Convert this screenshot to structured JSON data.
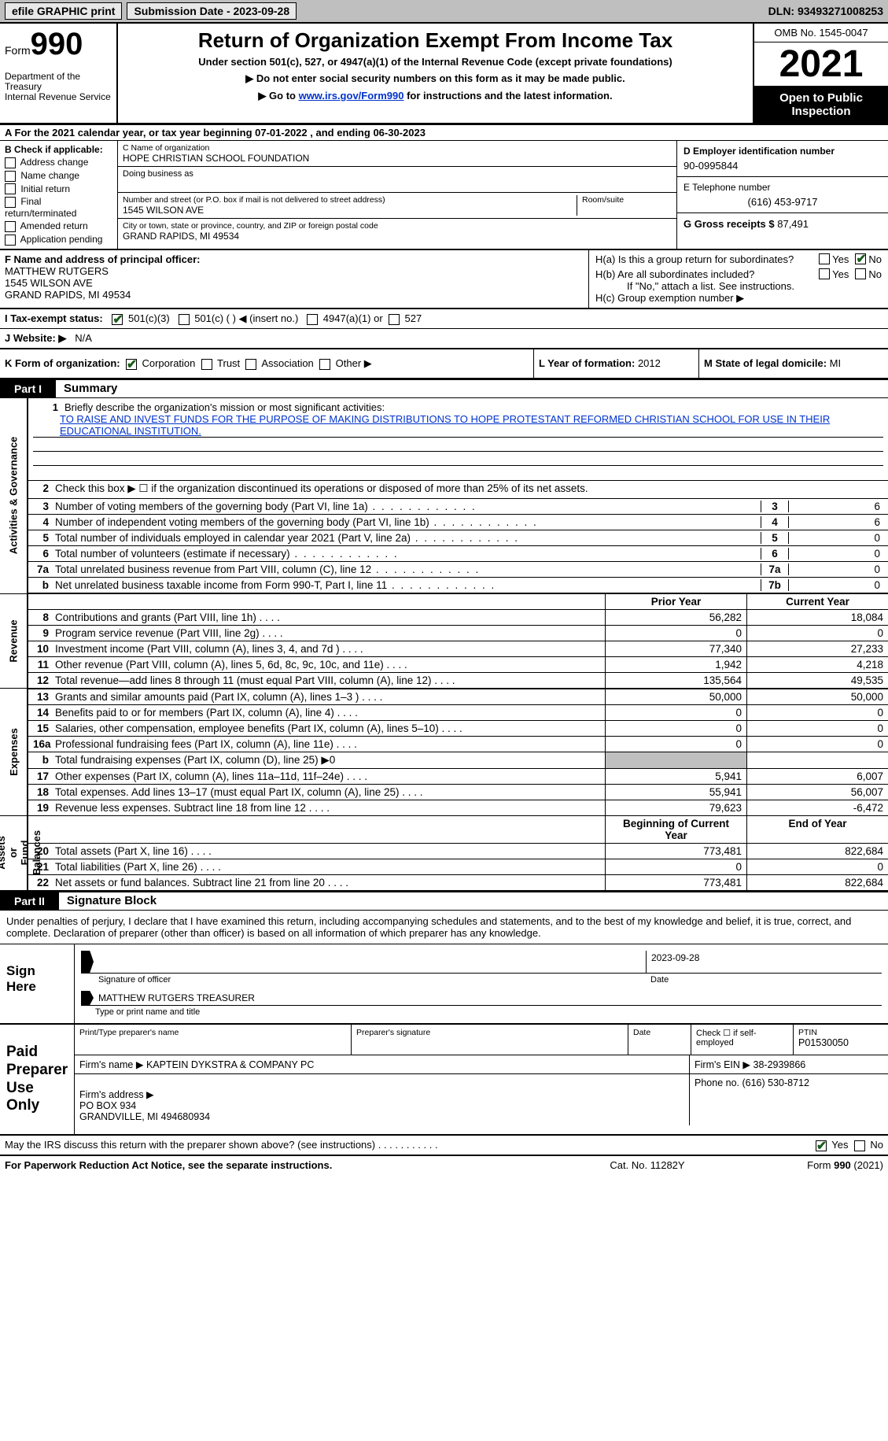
{
  "topbar": {
    "efile": "efile GRAPHIC print",
    "subdate_label": "Submission Date - ",
    "subdate": "2023-09-28",
    "dln_label": "DLN: ",
    "dln": "93493271008253"
  },
  "header": {
    "form_word": "Form",
    "form_no": "990",
    "dept": "Department of the Treasury\nInternal Revenue Service",
    "title": "Return of Organization Exempt From Income Tax",
    "sub1": "Under section 501(c), 527, or 4947(a)(1) of the Internal Revenue Code (except private foundations)",
    "sub2": "▶ Do not enter social security numbers on this form as it may be made public.",
    "sub3_pre": "▶ Go to ",
    "sub3_link": "www.irs.gov/Form990",
    "sub3_post": " for instructions and the latest information.",
    "omb": "OMB No. 1545-0047",
    "year": "2021",
    "inspect": "Open to Public Inspection"
  },
  "lineA": {
    "pre": "A For the 2021 calendar year, or tax year beginning ",
    "begin": "07-01-2022",
    "mid": "   , and ending ",
    "end": "06-30-2023"
  },
  "secB": {
    "b_label": "B Check if applicable:",
    "opts": [
      "Address change",
      "Name change",
      "Initial return",
      "Final return/terminated",
      "Amended return",
      "Application pending"
    ],
    "c_label": "C Name of organization",
    "org": "HOPE CHRISTIAN SCHOOL FOUNDATION",
    "dba_label": "Doing business as",
    "street_label": "Number and street (or P.O. box if mail is not delivered to street address)",
    "room_label": "Room/suite",
    "street": "1545 WILSON AVE",
    "city_label": "City or town, state or province, country, and ZIP or foreign postal code",
    "city": "GRAND RAPIDS, MI  49534",
    "d_label": "D Employer identification number",
    "ein": "90-0995844",
    "e_label": "E Telephone number",
    "phone": "(616) 453-9717",
    "g_label": "G Gross receipts $ ",
    "gross": "87,491"
  },
  "secF": {
    "f_label": "F Name and address of principal officer:",
    "name": "MATTHEW RUTGERS",
    "addr1": "1545 WILSON AVE",
    "addr2": "GRAND RAPIDS, MI  49534",
    "ha": "H(a)  Is this a group return for subordinates?",
    "hb": "H(b)  Are all subordinates included?",
    "hb_note": "If \"No,\" attach a list. See instructions.",
    "hc": "H(c)  Group exemption number ▶",
    "yes": "Yes",
    "no": "No"
  },
  "secI": {
    "label": "I   Tax-exempt status:",
    "o1": "501(c)(3)",
    "o2": "501(c) (  ) ◀ (insert no.)",
    "o3": "4947(a)(1) or",
    "o4": "527"
  },
  "secJ": {
    "label": "J   Website: ▶",
    "val": "N/A"
  },
  "secKLM": {
    "k_label": "K Form of organization:",
    "k_opts": [
      "Corporation",
      "Trust",
      "Association",
      "Other ▶"
    ],
    "l_label": "L Year of formation: ",
    "l_val": "2012",
    "m_label": "M State of legal domicile: ",
    "m_val": "MI"
  },
  "parts": {
    "p1": "Part I",
    "p1_title": "Summary",
    "p2": "Part II",
    "p2_title": "Signature Block"
  },
  "vtabs": {
    "ag": "Activities & Governance",
    "rev": "Revenue",
    "exp": "Expenses",
    "na": "Net Assets or\nFund Balances"
  },
  "summary": {
    "l1_label": "Briefly describe the organization's mission or most significant activities:",
    "l1_text": "TO RAISE AND INVEST FUNDS FOR THE PURPOSE OF MAKING DISTRIBUTIONS TO HOPE PROTESTANT REFORMED CHRISTIAN SCHOOL FOR USE IN THEIR EDUCATIONAL INSTITUTION.",
    "l2": "Check this box ▶ ☐  if the organization discontinued its operations or disposed of more than 25% of its net assets.",
    "rows_small": [
      {
        "n": "3",
        "t": "Number of voting members of the governing body (Part VI, line 1a)",
        "ln": "3",
        "v": "6"
      },
      {
        "n": "4",
        "t": "Number of independent voting members of the governing body (Part VI, line 1b)",
        "ln": "4",
        "v": "6"
      },
      {
        "n": "5",
        "t": "Total number of individuals employed in calendar year 2021 (Part V, line 2a)",
        "ln": "5",
        "v": "0"
      },
      {
        "n": "6",
        "t": "Total number of volunteers (estimate if necessary)",
        "ln": "6",
        "v": "0"
      },
      {
        "n": "7a",
        "t": "Total unrelated business revenue from Part VIII, column (C), line 12",
        "ln": "7a",
        "v": "0"
      },
      {
        "n": "b",
        "t": "Net unrelated business taxable income from Form 990-T, Part I, line 11",
        "ln": "7b",
        "v": "0"
      }
    ],
    "hd_prior": "Prior Year",
    "hd_curr": "Current Year",
    "revenue": [
      {
        "n": "8",
        "t": "Contributions and grants (Part VIII, line 1h)",
        "p": "56,282",
        "c": "18,084"
      },
      {
        "n": "9",
        "t": "Program service revenue (Part VIII, line 2g)",
        "p": "0",
        "c": "0"
      },
      {
        "n": "10",
        "t": "Investment income (Part VIII, column (A), lines 3, 4, and 7d )",
        "p": "77,340",
        "c": "27,233"
      },
      {
        "n": "11",
        "t": "Other revenue (Part VIII, column (A), lines 5, 6d, 8c, 9c, 10c, and 11e)",
        "p": "1,942",
        "c": "4,218"
      },
      {
        "n": "12",
        "t": "Total revenue—add lines 8 through 11 (must equal Part VIII, column (A), line 12)",
        "p": "135,564",
        "c": "49,535"
      }
    ],
    "expenses": [
      {
        "n": "13",
        "t": "Grants and similar amounts paid (Part IX, column (A), lines 1–3 )",
        "p": "50,000",
        "c": "50,000"
      },
      {
        "n": "14",
        "t": "Benefits paid to or for members (Part IX, column (A), line 4)",
        "p": "0",
        "c": "0"
      },
      {
        "n": "15",
        "t": "Salaries, other compensation, employee benefits (Part IX, column (A), lines 5–10)",
        "p": "0",
        "c": "0"
      },
      {
        "n": "16a",
        "t": "Professional fundraising fees (Part IX, column (A), line 11e)",
        "p": "0",
        "c": "0"
      },
      {
        "n": "b",
        "t": "Total fundraising expenses (Part IX, column (D), line 25) ▶0",
        "p": "",
        "c": "",
        "grey": true
      },
      {
        "n": "17",
        "t": "Other expenses (Part IX, column (A), lines 11a–11d, 11f–24e)",
        "p": "5,941",
        "c": "6,007"
      },
      {
        "n": "18",
        "t": "Total expenses. Add lines 13–17 (must equal Part IX, column (A), line 25)",
        "p": "55,941",
        "c": "56,007"
      },
      {
        "n": "19",
        "t": "Revenue less expenses. Subtract line 18 from line 12",
        "p": "79,623",
        "c": "-6,472"
      }
    ],
    "hd_beg": "Beginning of Current Year",
    "hd_end": "End of Year",
    "netassets": [
      {
        "n": "20",
        "t": "Total assets (Part X, line 16)",
        "p": "773,481",
        "c": "822,684"
      },
      {
        "n": "21",
        "t": "Total liabilities (Part X, line 26)",
        "p": "0",
        "c": "0"
      },
      {
        "n": "22",
        "t": "Net assets or fund balances. Subtract line 21 from line 20",
        "p": "773,481",
        "c": "822,684"
      }
    ]
  },
  "sig": {
    "intro": "Under penalties of perjury, I declare that I have examined this return, including accompanying schedules and statements, and to the best of my knowledge and belief, it is true, correct, and complete. Declaration of preparer (other than officer) is based on all information of which preparer has any knowledge.",
    "sign_here": "Sign Here",
    "sig_officer": "Signature of officer",
    "date_label": "Date",
    "date": "2023-09-28",
    "name": "MATTHEW RUTGERS  TREASURER",
    "name_sub": "Type or print name and title",
    "paid": "Paid Preparer Use Only",
    "pt_name_label": "Print/Type preparer's name",
    "pt_sig_label": "Preparer's signature",
    "pt_date_label": "Date",
    "pt_self": "Check ☐ if self-employed",
    "ptin_label": "PTIN",
    "ptin": "P01530050",
    "firm_name_label": "Firm's name    ▶ ",
    "firm_name": "KAPTEIN DYKSTRA & COMPANY PC",
    "firm_ein_label": "Firm's EIN ▶ ",
    "firm_ein": "38-2939866",
    "firm_addr_label": "Firm's address ▶ ",
    "firm_addr": "PO BOX 934\nGRANDVILLE, MI  494680934",
    "firm_phone_label": "Phone no. ",
    "firm_phone": "(616) 530-8712"
  },
  "discuss": {
    "txt": "May the IRS discuss this return with the preparer shown above? (see instructions)",
    "yes": "Yes",
    "no": "No"
  },
  "footer": {
    "l": "For Paperwork Reduction Act Notice, see the separate instructions.",
    "m": "Cat. No. 11282Y",
    "r": "Form 990 (2021)"
  }
}
